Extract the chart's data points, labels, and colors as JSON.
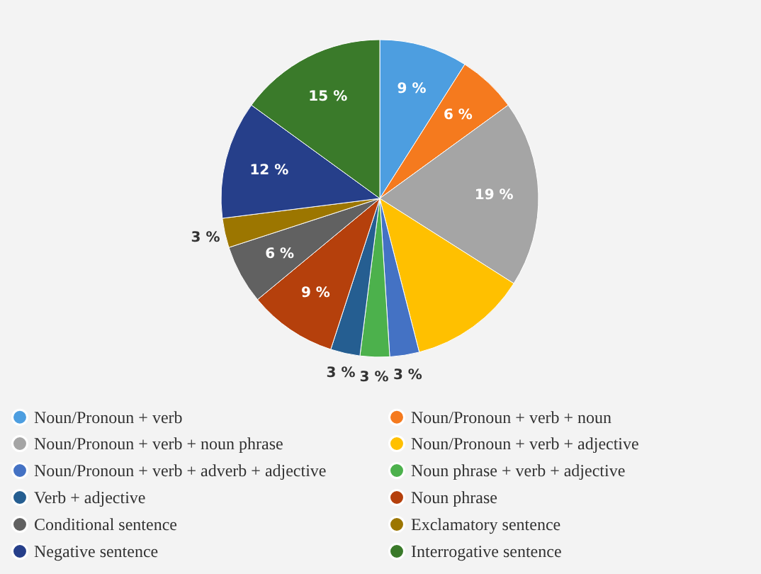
{
  "chart_data": {
    "type": "pie",
    "categories": [
      "Noun/Pronoun + verb",
      "Noun/Pronoun + verb + noun",
      "Noun/Pronoun + verb + noun phrase",
      "Noun/Pronoun + verb + adjective",
      "Noun/Pronoun + verb + adverb + adjective",
      "Noun phrase + verb + adjective",
      "Verb + adjective",
      "Noun phrase",
      "Conditional sentence",
      "Exclamatory sentence",
      "Negative sentence",
      "Interrogative sentence"
    ],
    "values": [
      9,
      6,
      19,
      12,
      3,
      3,
      3,
      9,
      6,
      3,
      12,
      15
    ],
    "value_labels": [
      "9 %",
      "6 %",
      "19 %",
      null,
      "3 %",
      "3 %",
      "3 %",
      "9 %",
      "6 %",
      "3 %",
      "12 %",
      "15 %"
    ],
    "colors": [
      "#4d9ee0",
      "#f57a1e",
      "#a5a5a5",
      "#ffc000",
      "#4472c4",
      "#4cb14c",
      "#255e91",
      "#b5400c",
      "#616161",
      "#9c7600",
      "#263f8a",
      "#3a7a2a"
    ],
    "legend": "bottom"
  }
}
